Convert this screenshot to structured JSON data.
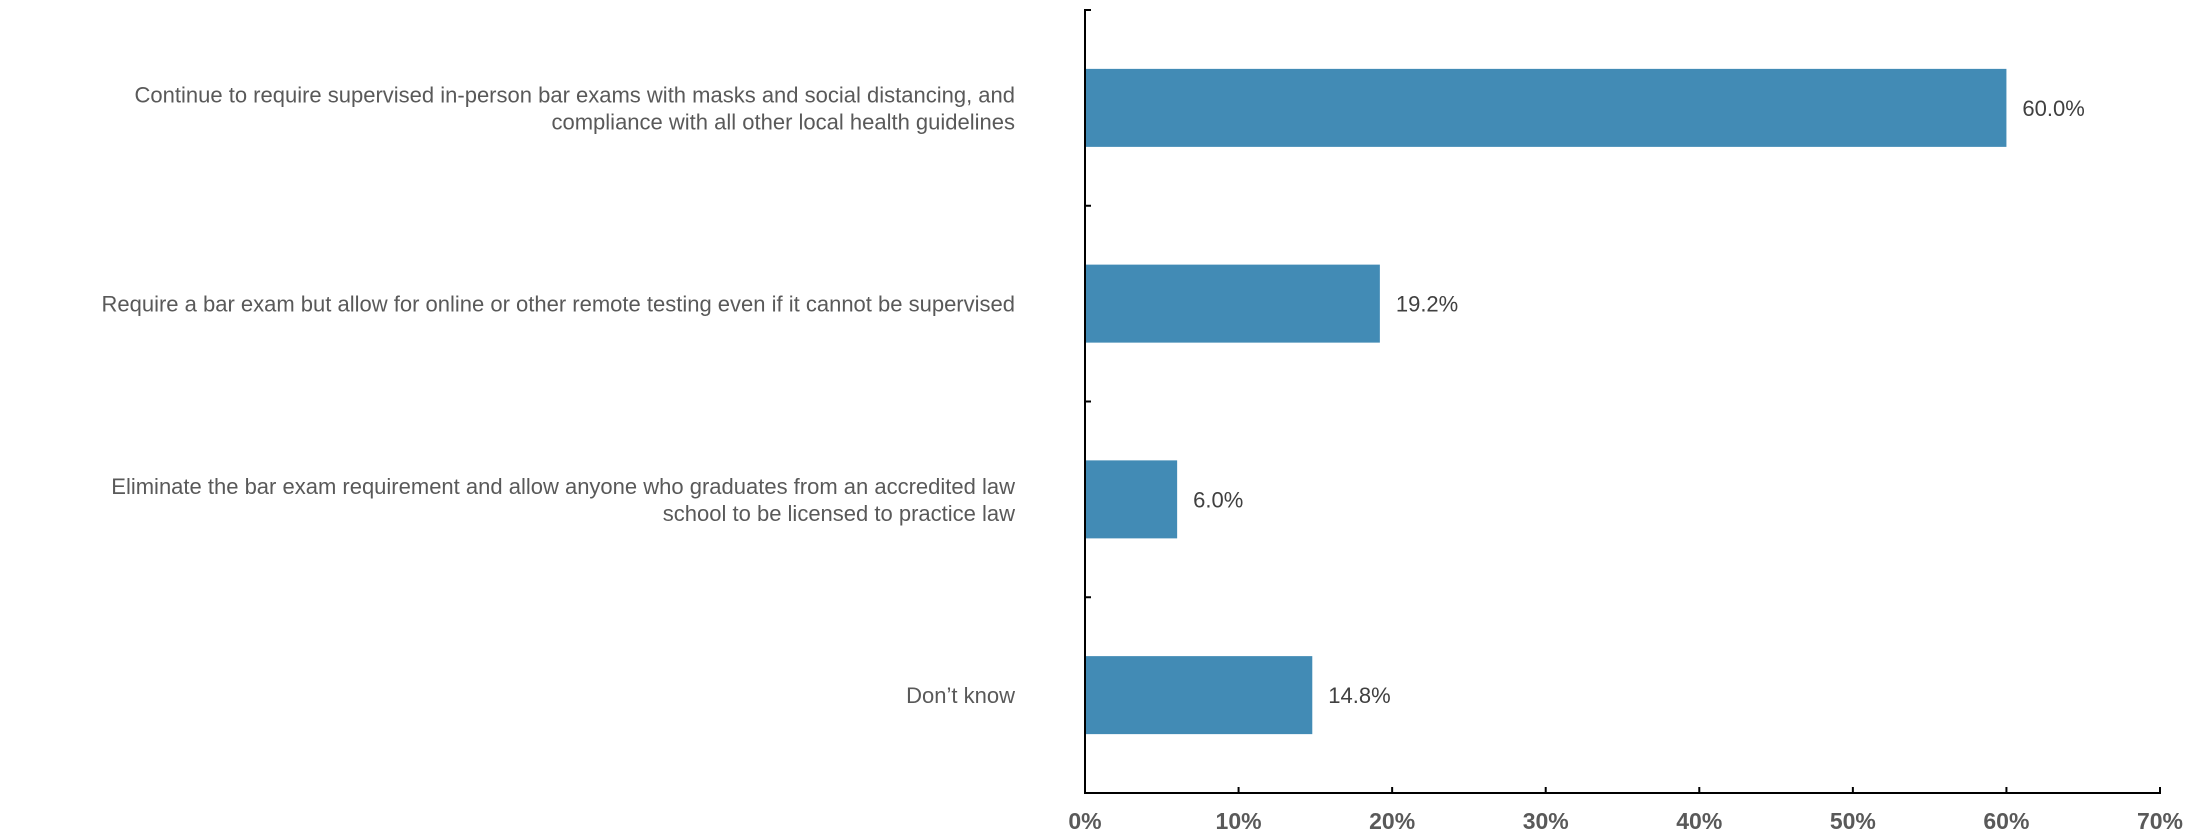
{
  "chart_data": {
    "type": "bar",
    "orientation": "horizontal",
    "title": "",
    "xlabel": "",
    "ylabel": "",
    "categories": [
      [
        "Continue to require supervised in-person bar exams with masks and social distancing, and",
        "compliance with all other local health guidelines"
      ],
      [
        "Require a bar exam but allow for online or other remote testing even if it cannot be supervised"
      ],
      [
        "Eliminate the bar exam requirement and allow anyone who graduates from an accredited law",
        "school to be licensed to practice law"
      ],
      [
        "Don’t know"
      ]
    ],
    "values": [
      60.0,
      19.2,
      6.0,
      14.8
    ],
    "data_labels": [
      "60.0%",
      "19.2%",
      "6.0%",
      "14.8%"
    ],
    "xlim": [
      0,
      70
    ],
    "x_ticks": [
      0,
      10,
      20,
      30,
      40,
      50,
      60,
      70
    ],
    "x_tick_labels": [
      "0%",
      "10%",
      "20%",
      "30%",
      "40%",
      "50%",
      "60%",
      "70%"
    ],
    "grid": false,
    "legend": "none",
    "bar_color": "#428BB5"
  }
}
